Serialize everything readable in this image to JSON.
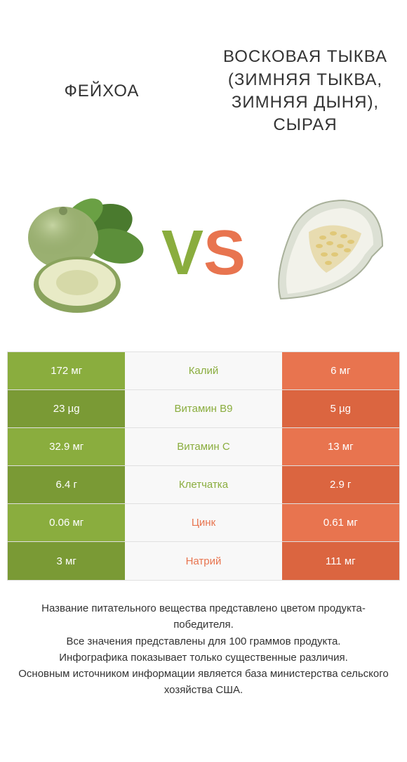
{
  "colors": {
    "left": "#8aad3e",
    "leftDark": "#7a9a35",
    "right": "#e8744f",
    "rightDark": "#db6540",
    "midBg": "#f8f8f8",
    "text": "#333333"
  },
  "header": {
    "left": "ФЕЙХОА",
    "right": "ВОСКОВАЯ ТЫКВА (ЗИМНЯЯ ТЫКВА, ЗИМНЯЯ ДЫНЯ), СЫРАЯ"
  },
  "vs": {
    "v": "V",
    "s": "S"
  },
  "rows": [
    {
      "left": "172 мг",
      "mid": "Калий",
      "right": "6 мг",
      "winner": "left"
    },
    {
      "left": "23 µg",
      "mid": "Витамин B9",
      "right": "5 µg",
      "winner": "left"
    },
    {
      "left": "32.9 мг",
      "mid": "Витамин C",
      "right": "13 мг",
      "winner": "left"
    },
    {
      "left": "6.4 г",
      "mid": "Клетчатка",
      "right": "2.9 г",
      "winner": "left"
    },
    {
      "left": "0.06 мг",
      "mid": "Цинк",
      "right": "0.61 мг",
      "winner": "right"
    },
    {
      "left": "3 мг",
      "mid": "Натрий",
      "right": "111 мг",
      "winner": "right"
    }
  ],
  "footer": {
    "l1": "Название питательного вещества представлено цветом продукта-победителя.",
    "l2": "Все значения представлены для 100 граммов продукта.",
    "l3": "Инфографика показывает только существенные различия.",
    "l4": "Основным источником информации является база министерства сельского хозяйства США."
  }
}
